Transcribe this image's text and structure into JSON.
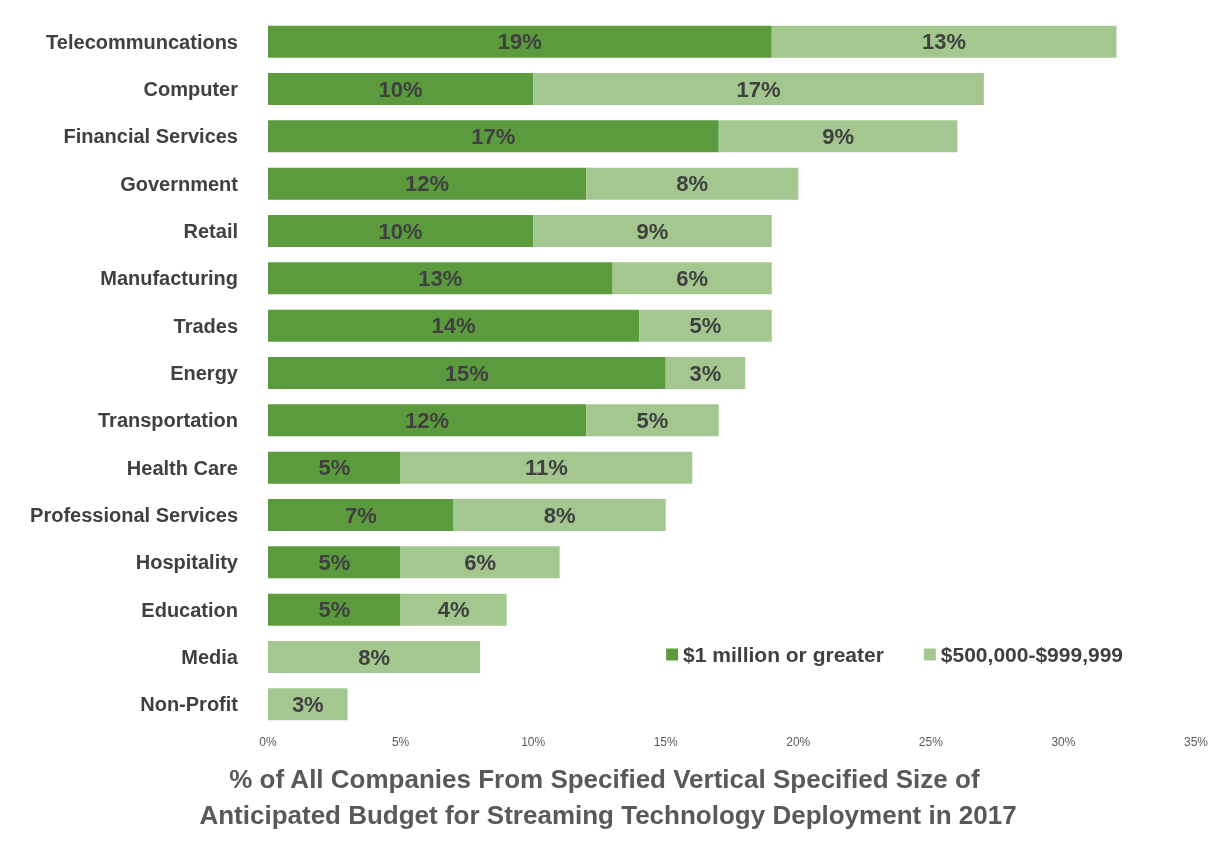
{
  "chart_data": {
    "type": "bar",
    "orientation": "horizontal",
    "stacked": true,
    "categories": [
      "Telecommuncations",
      "Computer",
      "Financial Services",
      "Government",
      "Retail",
      "Manufacturing",
      "Trades",
      "Energy",
      "Transportation",
      "Health Care",
      "Professional Services",
      "Hospitality",
      "Education",
      "Media",
      "Non-Profit"
    ],
    "series": [
      {
        "name": "$1 million or greater",
        "color": "#5b9a3d",
        "values": [
          19,
          10,
          17,
          12,
          10,
          13,
          14,
          15,
          12,
          5,
          7,
          5,
          5,
          null,
          null
        ],
        "value_labels": [
          "19%",
          "10%",
          "17%",
          "12%",
          "10%",
          "13%",
          "14%",
          "15%",
          "12%",
          "5%",
          "7%",
          "5%",
          "5%",
          null,
          null
        ]
      },
      {
        "name": "$500,000-$999,999",
        "color": "#a3c78e",
        "values": [
          13,
          17,
          9,
          8,
          9,
          6,
          5,
          3,
          5,
          11,
          8,
          6,
          4,
          8,
          3
        ],
        "value_labels": [
          "13%",
          "17%",
          "9%",
          "8%",
          "9%",
          "6%",
          "5%",
          "3%",
          "5%",
          "11%",
          "8%",
          "6%",
          "4%",
          "8%",
          "3%"
        ]
      }
    ],
    "xlim": [
      0,
      35
    ],
    "xticks": [
      {
        "value": 0,
        "label": "0%"
      },
      {
        "value": 5,
        "label": "5%"
      },
      {
        "value": 10,
        "label": "10%"
      },
      {
        "value": 15,
        "label": "15%"
      },
      {
        "value": 20,
        "label": "20%"
      },
      {
        "value": 25,
        "label": "25%"
      },
      {
        "value": 30,
        "label": "30%"
      },
      {
        "value": 35,
        "label": "35%"
      }
    ],
    "xlabel": "% of All Companies From Specified Vertical Specified Size of Anticipated Budget for Streaming Technology Deployment in 2017",
    "grid": false,
    "legend": "bottom right"
  }
}
